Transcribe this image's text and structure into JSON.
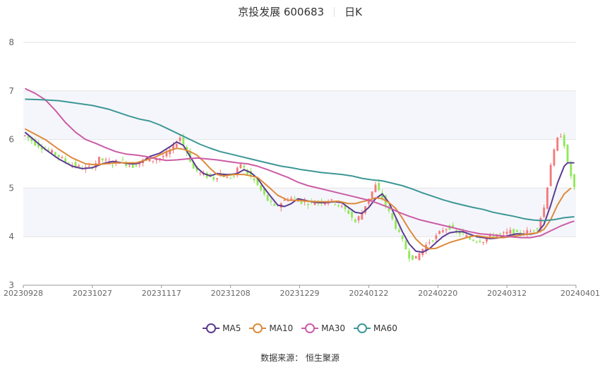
{
  "header": {
    "stock": "京投发展 600683",
    "period": "日K"
  },
  "footer": {
    "source": "数据来源： 恒生聚源"
  },
  "chart_data": {
    "type": "candlestick",
    "yaxis": {
      "min": 3,
      "max": 8,
      "ticks": [
        "3",
        "4",
        "5",
        "6",
        "7",
        "8"
      ]
    },
    "xaxis_ticks": [
      "20230928",
      "20231027",
      "20231117",
      "20231208",
      "20231229",
      "20240122",
      "20240220",
      "20240312",
      "20240401"
    ],
    "colors": {
      "up": "#f47a7a",
      "down": "#90e858",
      "band": "#f5f6fb",
      "grid": "#e3e3e3"
    },
    "legend": [
      {
        "name": "MA5",
        "color": "#5b3b91"
      },
      {
        "name": "MA10",
        "color": "#de8a3a"
      },
      {
        "name": "MA30",
        "color": "#cc5ca6"
      },
      {
        "name": "MA60",
        "color": "#3c9796"
      }
    ],
    "ma_series": {
      "MA5": [
        [
          0,
          6.15
        ],
        [
          6,
          5.8
        ],
        [
          10,
          5.6
        ],
        [
          14,
          5.45
        ],
        [
          17,
          5.4
        ],
        [
          20,
          5.42
        ],
        [
          23,
          5.5
        ],
        [
          26,
          5.55
        ],
        [
          29,
          5.52
        ],
        [
          31,
          5.5
        ],
        [
          33,
          5.5
        ],
        [
          35,
          5.55
        ],
        [
          37,
          5.65
        ],
        [
          40,
          5.72
        ],
        [
          43,
          5.85
        ],
        [
          45,
          5.95
        ],
        [
          47,
          5.88
        ],
        [
          49,
          5.65
        ],
        [
          51,
          5.42
        ],
        [
          53,
          5.3
        ],
        [
          55,
          5.25
        ],
        [
          57,
          5.3
        ],
        [
          59,
          5.28
        ],
        [
          61,
          5.28
        ],
        [
          63,
          5.3
        ],
        [
          65,
          5.38
        ],
        [
          67,
          5.32
        ],
        [
          69,
          5.2
        ],
        [
          71,
          5.0
        ],
        [
          73,
          4.82
        ],
        [
          75,
          4.65
        ],
        [
          77,
          4.62
        ],
        [
          79,
          4.68
        ],
        [
          81,
          4.78
        ],
        [
          83,
          4.75
        ],
        [
          85,
          4.72
        ],
        [
          87,
          4.7
        ],
        [
          89,
          4.7
        ],
        [
          92,
          4.72
        ],
        [
          94,
          4.7
        ],
        [
          96,
          4.6
        ],
        [
          98,
          4.5
        ],
        [
          100,
          4.48
        ],
        [
          102,
          4.6
        ],
        [
          104,
          4.78
        ],
        [
          106,
          4.88
        ],
        [
          108,
          4.7
        ],
        [
          110,
          4.4
        ],
        [
          112,
          4.1
        ],
        [
          114,
          3.85
        ],
        [
          116,
          3.7
        ],
        [
          118,
          3.68
        ],
        [
          120,
          3.75
        ],
        [
          122,
          3.88
        ],
        [
          124,
          4.0
        ],
        [
          126,
          4.08
        ],
        [
          128,
          4.1
        ],
        [
          130,
          4.1
        ],
        [
          132,
          4.05
        ],
        [
          134,
          4.0
        ],
        [
          136,
          3.98
        ],
        [
          138,
          3.96
        ],
        [
          140,
          3.97
        ],
        [
          142,
          4.0
        ],
        [
          144,
          4.03
        ],
        [
          146,
          4.06
        ],
        [
          148,
          4.05
        ],
        [
          150,
          4.05
        ],
        [
          152,
          4.08
        ],
        [
          154,
          4.25
        ],
        [
          156,
          4.65
        ],
        [
          158,
          5.1
        ],
        [
          160,
          5.45
        ],
        [
          161,
          5.52
        ],
        [
          163,
          5.52
        ]
      ],
      "MA10": [
        [
          0,
          6.22
        ],
        [
          6,
          6.0
        ],
        [
          10,
          5.8
        ],
        [
          14,
          5.62
        ],
        [
          18,
          5.5
        ],
        [
          21,
          5.48
        ],
        [
          24,
          5.5
        ],
        [
          27,
          5.52
        ],
        [
          30,
          5.52
        ],
        [
          33,
          5.52
        ],
        [
          36,
          5.58
        ],
        [
          39,
          5.65
        ],
        [
          42,
          5.75
        ],
        [
          45,
          5.82
        ],
        [
          47,
          5.8
        ],
        [
          49,
          5.75
        ],
        [
          51,
          5.68
        ],
        [
          53,
          5.55
        ],
        [
          55,
          5.4
        ],
        [
          57,
          5.28
        ],
        [
          59,
          5.25
        ],
        [
          62,
          5.28
        ],
        [
          65,
          5.28
        ],
        [
          67,
          5.25
        ],
        [
          69,
          5.22
        ],
        [
          71,
          5.1
        ],
        [
          73,
          4.98
        ],
        [
          75,
          4.85
        ],
        [
          78,
          4.75
        ],
        [
          81,
          4.75
        ],
        [
          84,
          4.73
        ],
        [
          87,
          4.72
        ],
        [
          90,
          4.72
        ],
        [
          93,
          4.73
        ],
        [
          96,
          4.68
        ],
        [
          98,
          4.68
        ],
        [
          100,
          4.72
        ],
        [
          102,
          4.75
        ],
        [
          104,
          4.8
        ],
        [
          106,
          4.78
        ],
        [
          108,
          4.7
        ],
        [
          110,
          4.58
        ],
        [
          112,
          4.38
        ],
        [
          114,
          4.15
        ],
        [
          116,
          3.95
        ],
        [
          118,
          3.82
        ],
        [
          120,
          3.75
        ],
        [
          122,
          3.76
        ],
        [
          124,
          3.82
        ],
        [
          126,
          3.88
        ],
        [
          128,
          3.92
        ],
        [
          130,
          3.96
        ],
        [
          132,
          4.0
        ],
        [
          134,
          4.02
        ],
        [
          136,
          4.0
        ],
        [
          138,
          3.98
        ],
        [
          140,
          3.98
        ],
        [
          142,
          3.98
        ],
        [
          144,
          4.0
        ],
        [
          146,
          4.02
        ],
        [
          148,
          4.04
        ],
        [
          150,
          4.06
        ],
        [
          152,
          4.08
        ],
        [
          154,
          4.15
        ],
        [
          156,
          4.35
        ],
        [
          158,
          4.65
        ],
        [
          160,
          4.88
        ],
        [
          162,
          5.0
        ]
      ],
      "MA30": [
        [
          0,
          7.05
        ],
        [
          3,
          6.95
        ],
        [
          6,
          6.82
        ],
        [
          9,
          6.6
        ],
        [
          12,
          6.35
        ],
        [
          15,
          6.15
        ],
        [
          18,
          6.0
        ],
        [
          21,
          5.92
        ],
        [
          24,
          5.83
        ],
        [
          27,
          5.75
        ],
        [
          30,
          5.7
        ],
        [
          33,
          5.68
        ],
        [
          36,
          5.65
        ],
        [
          39,
          5.6
        ],
        [
          42,
          5.57
        ],
        [
          45,
          5.58
        ],
        [
          48,
          5.6
        ],
        [
          51,
          5.62
        ],
        [
          54,
          5.6
        ],
        [
          57,
          5.58
        ],
        [
          60,
          5.55
        ],
        [
          63,
          5.52
        ],
        [
          66,
          5.5
        ],
        [
          69,
          5.45
        ],
        [
          72,
          5.38
        ],
        [
          75,
          5.3
        ],
        [
          78,
          5.22
        ],
        [
          81,
          5.12
        ],
        [
          84,
          5.05
        ],
        [
          87,
          5.0
        ],
        [
          90,
          4.95
        ],
        [
          93,
          4.9
        ],
        [
          96,
          4.85
        ],
        [
          99,
          4.8
        ],
        [
          102,
          4.75
        ],
        [
          105,
          4.68
        ],
        [
          108,
          4.6
        ],
        [
          111,
          4.5
        ],
        [
          114,
          4.42
        ],
        [
          117,
          4.35
        ],
        [
          120,
          4.3
        ],
        [
          123,
          4.25
        ],
        [
          126,
          4.2
        ],
        [
          129,
          4.15
        ],
        [
          132,
          4.1
        ],
        [
          135,
          4.06
        ],
        [
          138,
          4.04
        ],
        [
          141,
          4.02
        ],
        [
          144,
          4.0
        ],
        [
          147,
          3.98
        ],
        [
          150,
          3.98
        ],
        [
          153,
          4.02
        ],
        [
          156,
          4.12
        ],
        [
          159,
          4.22
        ],
        [
          162,
          4.3
        ],
        [
          163,
          4.32
        ]
      ],
      "MA60": [
        [
          0,
          6.83
        ],
        [
          5,
          6.82
        ],
        [
          10,
          6.8
        ],
        [
          15,
          6.75
        ],
        [
          20,
          6.7
        ],
        [
          25,
          6.62
        ],
        [
          28,
          6.55
        ],
        [
          31,
          6.48
        ],
        [
          34,
          6.42
        ],
        [
          37,
          6.38
        ],
        [
          40,
          6.3
        ],
        [
          43,
          6.2
        ],
        [
          46,
          6.1
        ],
        [
          49,
          6.0
        ],
        [
          52,
          5.9
        ],
        [
          55,
          5.82
        ],
        [
          58,
          5.75
        ],
        [
          61,
          5.7
        ],
        [
          64,
          5.65
        ],
        [
          67,
          5.6
        ],
        [
          70,
          5.55
        ],
        [
          73,
          5.5
        ],
        [
          76,
          5.45
        ],
        [
          79,
          5.42
        ],
        [
          82,
          5.38
        ],
        [
          85,
          5.35
        ],
        [
          88,
          5.32
        ],
        [
          91,
          5.3
        ],
        [
          94,
          5.28
        ],
        [
          97,
          5.25
        ],
        [
          100,
          5.2
        ],
        [
          103,
          5.17
        ],
        [
          106,
          5.15
        ],
        [
          109,
          5.1
        ],
        [
          112,
          5.05
        ],
        [
          115,
          4.98
        ],
        [
          118,
          4.9
        ],
        [
          121,
          4.83
        ],
        [
          124,
          4.76
        ],
        [
          127,
          4.7
        ],
        [
          130,
          4.65
        ],
        [
          133,
          4.6
        ],
        [
          136,
          4.56
        ],
        [
          139,
          4.5
        ],
        [
          142,
          4.46
        ],
        [
          145,
          4.42
        ],
        [
          148,
          4.37
        ],
        [
          151,
          4.34
        ],
        [
          154,
          4.33
        ],
        [
          157,
          4.35
        ],
        [
          160,
          4.39
        ],
        [
          163,
          4.41
        ]
      ]
    },
    "price_path": [
      [
        0,
        6.08
      ],
      [
        3,
        5.92
      ],
      [
        6,
        5.8
      ],
      [
        9,
        5.7
      ],
      [
        12,
        5.55
      ],
      [
        15,
        5.45
      ],
      [
        18,
        5.4
      ],
      [
        20,
        5.45
      ],
      [
        22,
        5.6
      ],
      [
        24,
        5.55
      ],
      [
        26,
        5.5
      ],
      [
        28,
        5.58
      ],
      [
        30,
        5.5
      ],
      [
        32,
        5.45
      ],
      [
        34,
        5.52
      ],
      [
        36,
        5.6
      ],
      [
        38,
        5.58
      ],
      [
        40,
        5.62
      ],
      [
        42,
        5.7
      ],
      [
        44,
        5.85
      ],
      [
        46,
        6.05
      ],
      [
        48,
        5.75
      ],
      [
        50,
        5.4
      ],
      [
        52,
        5.3
      ],
      [
        54,
        5.25
      ],
      [
        56,
        5.2
      ],
      [
        58,
        5.3
      ],
      [
        60,
        5.2
      ],
      [
        62,
        5.25
      ],
      [
        64,
        5.5
      ],
      [
        66,
        5.3
      ],
      [
        68,
        5.15
      ],
      [
        70,
        4.95
      ],
      [
        72,
        4.75
      ],
      [
        74,
        4.6
      ],
      [
        76,
        4.7
      ],
      [
        78,
        4.8
      ],
      [
        80,
        4.78
      ],
      [
        82,
        4.72
      ],
      [
        84,
        4.7
      ],
      [
        86,
        4.72
      ],
      [
        88,
        4.72
      ],
      [
        90,
        4.75
      ],
      [
        92,
        4.7
      ],
      [
        94,
        4.6
      ],
      [
        96,
        4.5
      ],
      [
        98,
        4.3
      ],
      [
        100,
        4.5
      ],
      [
        102,
        4.8
      ],
      [
        104,
        5.05
      ],
      [
        106,
        4.8
      ],
      [
        108,
        4.5
      ],
      [
        110,
        4.2
      ],
      [
        112,
        3.9
      ],
      [
        114,
        3.6
      ],
      [
        116,
        3.55
      ],
      [
        118,
        3.75
      ],
      [
        120,
        3.9
      ],
      [
        122,
        4.0
      ],
      [
        124,
        4.15
      ],
      [
        126,
        4.2
      ],
      [
        128,
        4.1
      ],
      [
        130,
        4.05
      ],
      [
        132,
        3.95
      ],
      [
        134,
        3.93
      ],
      [
        136,
        3.92
      ],
      [
        138,
        4.0
      ],
      [
        140,
        4.05
      ],
      [
        142,
        4.05
      ],
      [
        144,
        4.1
      ],
      [
        146,
        4.05
      ],
      [
        148,
        4.1
      ],
      [
        150,
        4.1
      ],
      [
        152,
        4.2
      ],
      [
        154,
        4.6
      ],
      [
        156,
        5.5
      ],
      [
        158,
        6.0
      ],
      [
        159,
        6.1
      ],
      [
        160,
        5.9
      ],
      [
        161,
        5.5
      ],
      [
        163,
        5.0
      ]
    ]
  }
}
